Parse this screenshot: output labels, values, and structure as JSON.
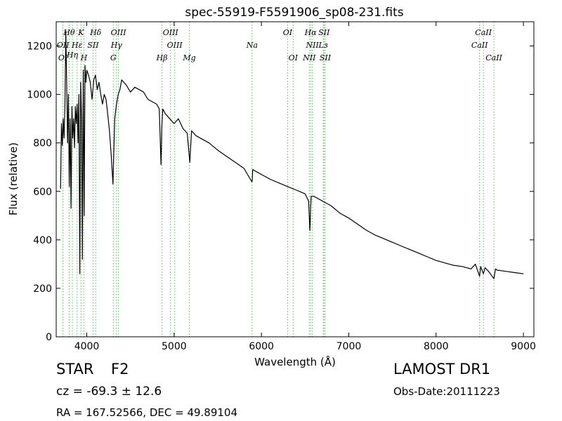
{
  "info": {
    "object_class": "STAR",
    "subclass": "F2",
    "survey": "LAMOST DR1",
    "cz": "cz = -69.3 ± 12.6",
    "obs_date": "Obs-Date:20111223",
    "coords": "RA = 167.52566, DEC = 49.89104"
  },
  "chart_data": {
    "type": "line",
    "title": "spec-55919-F5591906_sp08-231.fits",
    "xlabel": "Wavelength (Å)",
    "ylabel": "Flux (relative)",
    "xlim": [
      3650,
      9120
    ],
    "ylim": [
      0,
      1300
    ],
    "x_ticks": [
      4000,
      5000,
      6000,
      7000,
      8000,
      9000
    ],
    "y_ticks": [
      0,
      200,
      400,
      600,
      800,
      1000,
      1200
    ],
    "grid": false,
    "line_color": "#000000",
    "marker_color": "#5cb85c",
    "series": [
      {
        "x": [
          3700,
          3710,
          3720,
          3730,
          3740,
          3750,
          3760,
          3770,
          3780,
          3790,
          3800,
          3810,
          3820,
          3830,
          3840,
          3850,
          3860,
          3870,
          3880,
          3890,
          3900,
          3910,
          3920,
          3930,
          3940,
          3950,
          3960,
          3970,
          3980,
          3990,
          4000,
          4020,
          4040,
          4060,
          4080,
          4100,
          4120,
          4140,
          4160,
          4180,
          4200,
          4220,
          4240,
          4260,
          4280,
          4300,
          4320,
          4340,
          4360,
          4380,
          4400,
          4450,
          4500,
          4550,
          4600,
          4650,
          4700,
          4750,
          4800,
          4830,
          4850,
          4861,
          4870,
          4900,
          4950,
          5000,
          5050,
          5100,
          5150,
          5180,
          5200,
          5250,
          5300,
          5400,
          5500,
          5600,
          5700,
          5800,
          5890,
          5895,
          5900,
          6000,
          6100,
          6200,
          6300,
          6400,
          6500,
          6540,
          6555,
          6563,
          6570,
          6600,
          6700,
          6800,
          6900,
          7000,
          7100,
          7200,
          7300,
          7400,
          7500,
          7600,
          7700,
          7800,
          7900,
          8000,
          8100,
          8200,
          8300,
          8400,
          8450,
          8498,
          8510,
          8542,
          8560,
          8600,
          8662,
          8680,
          8700,
          8800,
          8900,
          9000
        ],
        "y": [
          610,
          880,
          790,
          900,
          820,
          950,
          1260,
          1050,
          800,
          1000,
          620,
          900,
          530,
          950,
          820,
          900,
          780,
          950,
          880,
          960,
          800,
          1000,
          260,
          1050,
          900,
          320,
          1100,
          500,
          1120,
          1050,
          1100,
          1080,
          1050,
          980,
          1060,
          1080,
          1020,
          1050,
          1000,
          960,
          1000,
          980,
          920,
          850,
          750,
          630,
          900,
          960,
          1000,
          1020,
          1060,
          1040,
          1010,
          1030,
          1020,
          1010,
          980,
          970,
          960,
          940,
          710,
          880,
          940,
          920,
          900,
          880,
          900,
          860,
          840,
          720,
          850,
          830,
          820,
          800,
          770,
          745,
          720,
          695,
          640,
          645,
          690,
          670,
          650,
          635,
          620,
          605,
          590,
          560,
          440,
          530,
          580,
          580,
          560,
          540,
          510,
          490,
          465,
          440,
          420,
          405,
          390,
          375,
          360,
          345,
          330,
          315,
          305,
          295,
          290,
          280,
          300,
          250,
          290,
          260,
          285,
          270,
          240,
          280,
          275,
          270,
          265,
          260
        ]
      }
    ],
    "lines_top": [
      {
        "label": "Hθ",
        "wavelength": 3798
      },
      {
        "label": "K",
        "wavelength": 3934
      },
      {
        "label": "Hδ",
        "wavelength": 4102
      },
      {
        "label": "OIII",
        "wavelength": 4363
      },
      {
        "label": "OIII",
        "wavelength": 4959
      },
      {
        "label": "OI",
        "wavelength": 6300
      },
      {
        "label": "Hα",
        "wavelength": 6563
      },
      {
        "label": "SII",
        "wavelength": 6717
      },
      {
        "label": "CaII",
        "wavelength": 8542
      }
    ],
    "lines_mid": [
      {
        "label": "OII",
        "wavelength": 3727
      },
      {
        "label": "Hε",
        "wavelength": 3889
      },
      {
        "label": "SII",
        "wavelength": 4072
      },
      {
        "label": "Hγ",
        "wavelength": 4340
      },
      {
        "label": "OIII",
        "wavelength": 5007
      },
      {
        "label": "Na",
        "wavelength": 5893
      },
      {
        "label": "NII",
        "wavelength": 6583
      },
      {
        "label": "Lз",
        "wavelength": 6708
      },
      {
        "label": "CaII",
        "wavelength": 8498
      }
    ],
    "lines_low_a": [
      {
        "label": "Hη",
        "wavelength": 3835
      }
    ],
    "lines_low": [
      {
        "label": "OI",
        "wavelength": 3727
      },
      {
        "label": "H",
        "wavelength": 3968
      },
      {
        "label": "G",
        "wavelength": 4304
      },
      {
        "label": "Hβ",
        "wavelength": 4861
      },
      {
        "label": "Mg",
        "wavelength": 5175
      },
      {
        "label": "OI",
        "wavelength": 6363
      },
      {
        "label": "NII",
        "wavelength": 6548
      },
      {
        "label": "SII",
        "wavelength": 6731
      },
      {
        "label": "CaII",
        "wavelength": 8662
      }
    ]
  }
}
